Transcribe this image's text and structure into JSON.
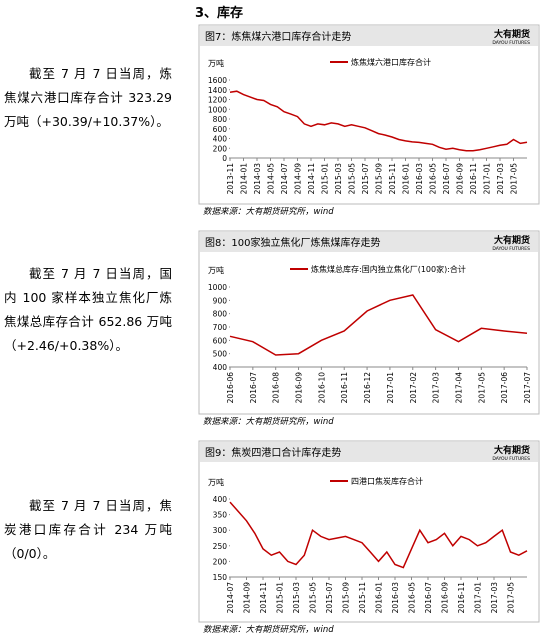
{
  "document": {
    "heading": "3、库存",
    "paragraphs": [
      "截至 7 月 7 日当周，炼焦煤六港口库存合计 323.29 万吨（+30.39/+10.37%）。",
      "截至 7 月 7 日当周，国内 100 家样本独立焦化厂炼焦煤总库存合计 652.86 万吨（+2.46/+0.38%）。",
      "截至 7 月 7 日当周，焦炭港口库存合计 234 万吨（0/0）。"
    ],
    "logo": {
      "name": "大有期货",
      "sub": "DAYOU FUTURES"
    }
  },
  "chart_data": [
    {
      "type": "line",
      "title": "图7：炼焦煤六港口库存合计走势",
      "unit": "万吨",
      "note": "数据来源：大有期货研究所，wind",
      "categories": [
        "2013-11",
        null,
        "2014-01",
        null,
        "2014-03",
        null,
        "2014-05",
        null,
        "2014-07",
        null,
        "2014-09",
        null,
        "2014-11",
        null,
        "2015-01",
        null,
        "2015-03",
        null,
        "2015-05",
        null,
        "2015-07",
        null,
        "2015-09",
        null,
        "2015-11",
        null,
        "2016-01",
        null,
        "2016-03",
        null,
        "2016-05",
        null,
        "2016-07",
        null,
        "2016-09",
        null,
        "2016-11",
        null,
        "2017-01",
        null,
        "2017-03",
        null,
        "2017-05",
        null,
        null
      ],
      "series": [
        {
          "name": "炼焦煤六港口库存合计",
          "color": "#c00000",
          "values": [
            1350,
            1370,
            1300,
            1250,
            1200,
            1180,
            1100,
            1050,
            950,
            900,
            850,
            700,
            650,
            700,
            680,
            720,
            700,
            650,
            680,
            650,
            620,
            560,
            500,
            470,
            430,
            380,
            350,
            330,
            320,
            300,
            280,
            220,
            180,
            200,
            170,
            150,
            150,
            170,
            200,
            230,
            260,
            280,
            380,
            300,
            323.29
          ]
        }
      ],
      "ylim": [
        0,
        1600
      ],
      "yticks": [
        0,
        200,
        400,
        600,
        800,
        1000,
        1200,
        1400,
        1600
      ]
    },
    {
      "type": "line",
      "title": "图8：100家独立焦化厂炼焦煤库存走势",
      "unit": "万吨",
      "note": "数据来源：大有期货研究所，wind",
      "categories": [
        "2016-06",
        "2016-07",
        "2016-08",
        "2016-09",
        "2016-10",
        "2016-11",
        "2016-12",
        "2017-01",
        "2017-02",
        "2017-03",
        "2017-04",
        "2017-05",
        "2017-06",
        "2017-07"
      ],
      "series": [
        {
          "name": "炼焦煤总库存:国内独立焦化厂(100家):合计",
          "color": "#c00000",
          "values": [
            630,
            590,
            490,
            500,
            600,
            670,
            820,
            900,
            940,
            680,
            590,
            690,
            670,
            652.86
          ]
        }
      ],
      "ylim": [
        400,
        1000
      ],
      "yticks": [
        400,
        500,
        600,
        700,
        800,
        900,
        1000
      ]
    },
    {
      "type": "line",
      "title": "图9：焦炭四港口合计库存走势",
      "unit": "万吨",
      "note": "数据来源：大有期货研究所，wind",
      "categories": [
        "2014-07",
        null,
        "2014-09",
        null,
        "2014-11",
        null,
        "2015-01",
        null,
        "2015-03",
        null,
        "2015-05",
        null,
        "2015-07",
        null,
        "2015-09",
        null,
        "2015-11",
        null,
        "2016-01",
        null,
        "2016-03",
        null,
        "2016-05",
        null,
        "2016-07",
        null,
        "2016-09",
        null,
        "2016-11",
        null,
        "2017-01",
        null,
        "2017-03",
        null,
        "2017-05",
        null,
        null
      ],
      "series": [
        {
          "name": "四港口焦炭库存合计",
          "color": "#c00000",
          "values": [
            390,
            360,
            330,
            290,
            240,
            220,
            230,
            200,
            190,
            220,
            300,
            280,
            270,
            275,
            280,
            270,
            260,
            230,
            200,
            230,
            190,
            180,
            240,
            300,
            260,
            270,
            290,
            250,
            280,
            270,
            250,
            260,
            280,
            300,
            230,
            220,
            234
          ]
        }
      ],
      "ylim": [
        150,
        400
      ],
      "yticks": [
        150,
        200,
        250,
        300,
        350,
        400
      ]
    }
  ]
}
